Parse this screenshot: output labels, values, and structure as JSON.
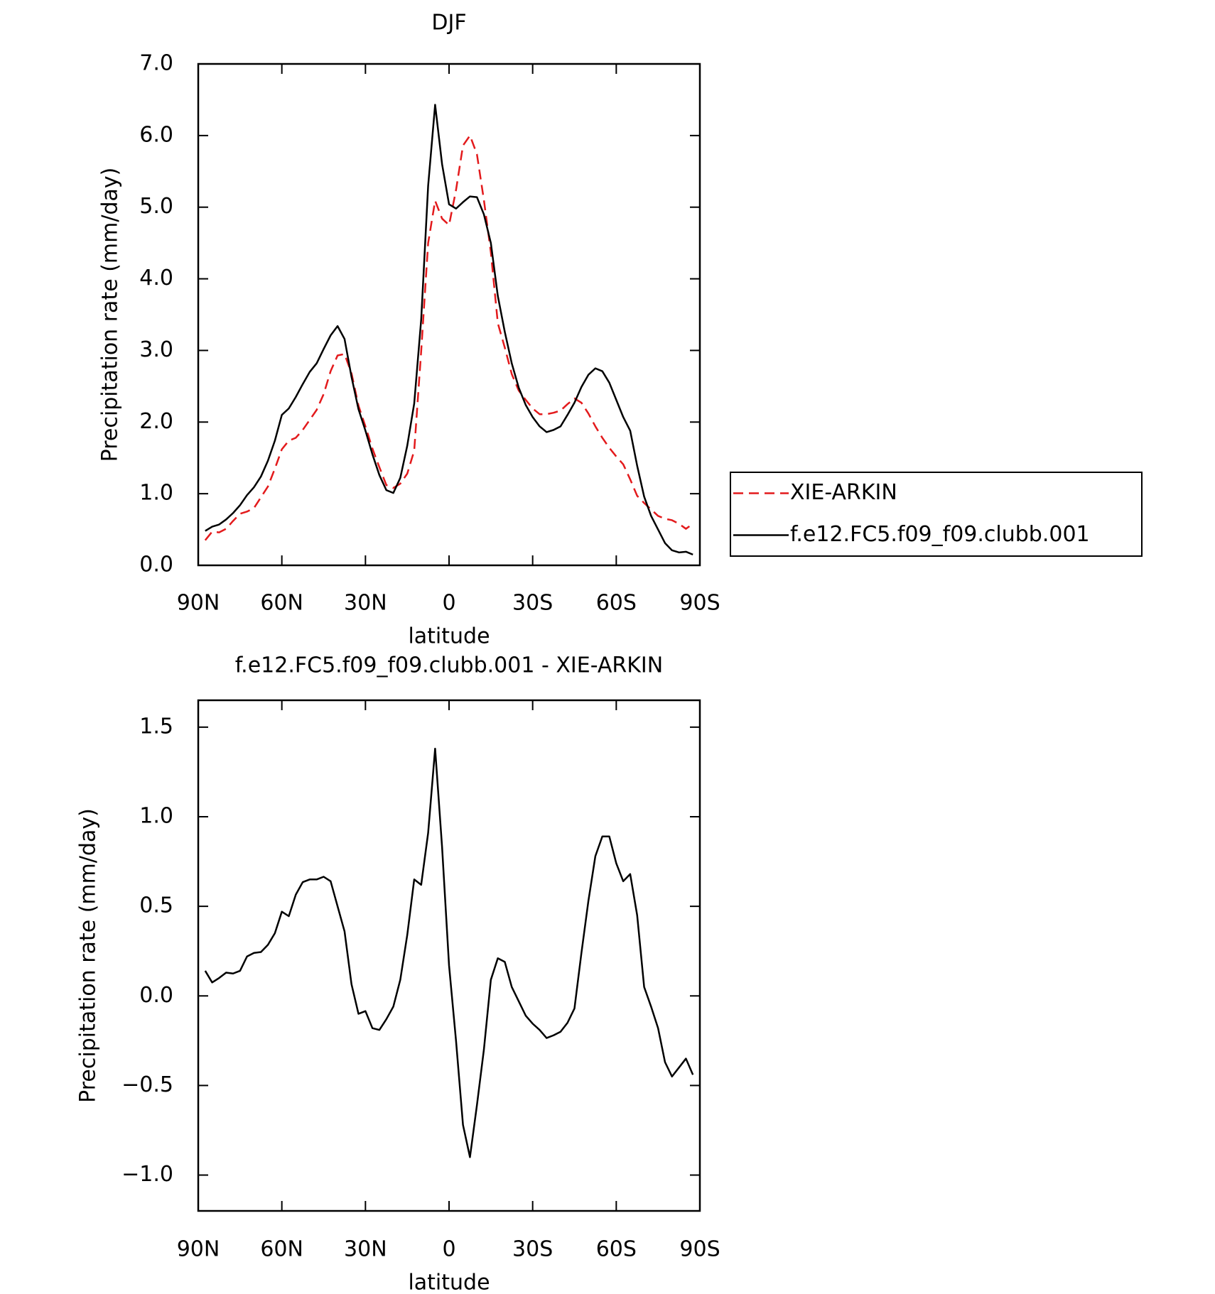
{
  "chart_data": [
    {
      "type": "line",
      "title": "DJF",
      "xlabel": "latitude",
      "ylabel": "Precipitation rate (mm/day)",
      "x": [
        87.5,
        85,
        82.5,
        80,
        77.5,
        75,
        72.5,
        70,
        67.5,
        65,
        62.5,
        60,
        57.5,
        55,
        52.5,
        50,
        47.5,
        45,
        42.5,
        40,
        37.5,
        35,
        32.5,
        30,
        27.5,
        25,
        22.5,
        20,
        17.5,
        15,
        12.5,
        10,
        7.5,
        5,
        2.5,
        0,
        -2.5,
        -5,
        -7.5,
        -10,
        -12.5,
        -15,
        -17.5,
        -20,
        -22.5,
        -25,
        -27.5,
        -30,
        -32.5,
        -35,
        -37.5,
        -40,
        -42.5,
        -45,
        -47.5,
        -50,
        -52.5,
        -55,
        -57.5,
        -60,
        -62.5,
        -65,
        -67.5,
        -70,
        -72.5,
        -75,
        -77.5,
        -80,
        -82.5,
        -85,
        -87.5
      ],
      "xlim": [
        90,
        -90
      ],
      "xticks": [
        {
          "value": 90,
          "label": "90N"
        },
        {
          "value": 60,
          "label": "60N"
        },
        {
          "value": 30,
          "label": "30N"
        },
        0,
        {
          "value": -30,
          "label": "30S"
        },
        {
          "value": -60,
          "label": "60S"
        },
        {
          "value": -90,
          "label": "90S"
        }
      ],
      "ylim": [
        0,
        7
      ],
      "yticks": [
        {
          "value": 0,
          "label": "0.0"
        },
        {
          "value": 1,
          "label": "1.0"
        },
        {
          "value": 2,
          "label": "2.0"
        },
        {
          "value": 3,
          "label": "3.0"
        },
        {
          "value": 4,
          "label": "4.0"
        },
        {
          "value": 5,
          "label": "5.0"
        },
        {
          "value": 6,
          "label": "6.0"
        },
        {
          "value": 7,
          "label": "7.0"
        }
      ],
      "grid": false,
      "legend": "right",
      "series": [
        {
          "name": "XIE-ARKIN",
          "color": "#e31a1c",
          "dashed": true,
          "values": [
            0.35,
            0.47,
            0.46,
            0.51,
            0.62,
            0.72,
            0.75,
            0.8,
            0.95,
            1.1,
            1.35,
            1.62,
            1.74,
            1.78,
            1.89,
            2.03,
            2.17,
            2.39,
            2.71,
            2.93,
            2.95,
            2.68,
            2.23,
            1.94,
            1.63,
            1.37,
            1.12,
            1.08,
            1.14,
            1.28,
            1.6,
            2.99,
            4.5,
            5.09,
            4.84,
            4.75,
            5.24,
            5.86,
            6.0,
            5.74,
            5.1,
            4.37,
            3.38,
            3.04,
            2.67,
            2.44,
            2.31,
            2.19,
            2.11,
            2.11,
            2.13,
            2.16,
            2.25,
            2.33,
            2.27,
            2.12,
            1.94,
            1.78,
            1.64,
            1.52,
            1.41,
            1.2,
            0.97,
            0.87,
            0.78,
            0.69,
            0.65,
            0.63,
            0.58,
            0.51,
            0.58
          ]
        },
        {
          "name": "f.e12.FC5.f09_f09.clubb.001",
          "color": "#000000",
          "dashed": false,
          "values": [
            0.48,
            0.54,
            0.57,
            0.64,
            0.73,
            0.84,
            0.98,
            1.09,
            1.24,
            1.46,
            1.74,
            2.1,
            2.19,
            2.35,
            2.53,
            2.7,
            2.82,
            3.02,
            3.21,
            3.34,
            3.16,
            2.63,
            2.18,
            1.88,
            1.55,
            1.26,
            1.05,
            1.01,
            1.22,
            1.67,
            2.26,
            3.43,
            5.3,
            6.43,
            5.6,
            5.04,
            4.98,
            5.07,
            5.15,
            5.14,
            4.9,
            4.5,
            3.76,
            3.26,
            2.82,
            2.48,
            2.24,
            2.07,
            1.94,
            1.86,
            1.89,
            1.94,
            2.1,
            2.27,
            2.49,
            2.66,
            2.75,
            2.71,
            2.55,
            2.31,
            2.07,
            1.88,
            1.39,
            0.96,
            0.69,
            0.5,
            0.31,
            0.21,
            0.18,
            0.19,
            0.15
          ]
        }
      ]
    },
    {
      "type": "line",
      "title": "f.e12.FC5.f09_f09.clubb.001 - XIE-ARKIN",
      "xlabel": "latitude",
      "ylabel": "Precipitation rate (mm/day)",
      "x": [
        87.5,
        85,
        82.5,
        80,
        77.5,
        75,
        72.5,
        70,
        67.5,
        65,
        62.5,
        60,
        57.5,
        55,
        52.5,
        50,
        47.5,
        45,
        42.5,
        40,
        37.5,
        35,
        32.5,
        30,
        27.5,
        25,
        22.5,
        20,
        17.5,
        15,
        12.5,
        10,
        7.5,
        5,
        2.5,
        0,
        -2.5,
        -5,
        -7.5,
        -10,
        -12.5,
        -15,
        -17.5,
        -20,
        -22.5,
        -25,
        -27.5,
        -30,
        -32.5,
        -35,
        -37.5,
        -40,
        -42.5,
        -45,
        -47.5,
        -50,
        -52.5,
        -55,
        -57.5,
        -60,
        -62.5,
        -65,
        -67.5,
        -70,
        -72.5,
        -75,
        -77.5,
        -80,
        -82.5,
        -85,
        -87.5
      ],
      "xlim": [
        90,
        -90
      ],
      "xticks": [
        {
          "value": 90,
          "label": "90N"
        },
        {
          "value": 60,
          "label": "60N"
        },
        {
          "value": 30,
          "label": "30N"
        },
        0,
        {
          "value": -30,
          "label": "30S"
        },
        {
          "value": -60,
          "label": "60S"
        },
        {
          "value": -90,
          "label": "90S"
        }
      ],
      "ylim": [
        -1.2,
        1.65
      ],
      "yticks": [
        {
          "value": -1,
          "label": "−1.0"
        },
        {
          "value": -0.5,
          "label": "−0.5"
        },
        {
          "value": 0,
          "label": "0.0"
        },
        {
          "value": 0.5,
          "label": "0.5"
        },
        {
          "value": 1,
          "label": "1.0"
        },
        {
          "value": 1.5,
          "label": "1.5"
        }
      ],
      "grid": false,
      "series": [
        {
          "color": "#000000",
          "dashed": false,
          "values": [
            0.14,
            0.075,
            0.1,
            0.13,
            0.125,
            0.14,
            0.22,
            0.24,
            0.245,
            0.285,
            0.35,
            0.47,
            0.445,
            0.565,
            0.635,
            0.65,
            0.65,
            0.665,
            0.64,
            0.5,
            0.36,
            0.065,
            -0.1,
            -0.085,
            -0.18,
            -0.19,
            -0.13,
            -0.06,
            0.09,
            0.34,
            0.65,
            0.62,
            0.91,
            1.38,
            0.83,
            0.17,
            -0.25,
            -0.72,
            -0.9,
            -0.61,
            -0.3,
            0.09,
            0.21,
            0.19,
            0.05,
            -0.03,
            -0.11,
            -0.155,
            -0.19,
            -0.235,
            -0.22,
            -0.2,
            -0.15,
            -0.07,
            0.24,
            0.53,
            0.78,
            0.89,
            0.89,
            0.74,
            0.64,
            0.68,
            0.45,
            0.05,
            -0.06,
            -0.18,
            -0.37,
            -0.45,
            -0.4,
            -0.35,
            -0.44
          ]
        }
      ]
    }
  ]
}
